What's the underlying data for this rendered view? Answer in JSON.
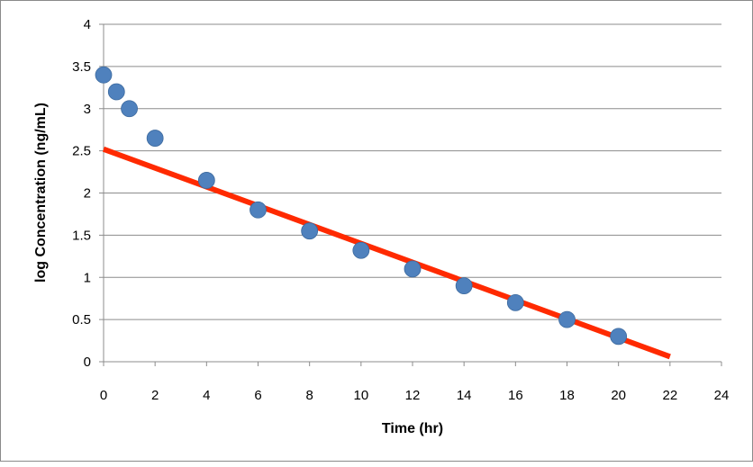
{
  "chart_data": {
    "type": "scatter",
    "title": "",
    "xlabel": "Time (hr)",
    "ylabel": "log Concentration (ng/mL)",
    "xlim": [
      0,
      24
    ],
    "ylim": [
      0,
      4
    ],
    "x_ticks": [
      0,
      2,
      4,
      6,
      8,
      10,
      12,
      14,
      16,
      18,
      20,
      22,
      24
    ],
    "y_ticks": [
      0,
      0.5,
      1,
      1.5,
      2,
      2.5,
      3,
      3.5,
      4
    ],
    "grid": {
      "horizontal": true,
      "vertical": false
    },
    "legend": "none",
    "series": [
      {
        "type": "scatter",
        "color": "#4f81bd",
        "points": [
          {
            "x": 0,
            "y": 3.4
          },
          {
            "x": 0.5,
            "y": 3.2
          },
          {
            "x": 1,
            "y": 3.0
          },
          {
            "x": 2,
            "y": 2.65
          },
          {
            "x": 4,
            "y": 2.15
          },
          {
            "x": 6,
            "y": 1.8
          },
          {
            "x": 8,
            "y": 1.55
          },
          {
            "x": 10,
            "y": 1.32
          },
          {
            "x": 12,
            "y": 1.1
          },
          {
            "x": 14,
            "y": 0.9
          },
          {
            "x": 16,
            "y": 0.7
          },
          {
            "x": 18,
            "y": 0.5
          },
          {
            "x": 20,
            "y": 0.3
          }
        ]
      },
      {
        "type": "line",
        "color": "#ff2a00",
        "points": [
          {
            "x": 0,
            "y": 2.52
          },
          {
            "x": 22,
            "y": 0.06
          }
        ]
      }
    ]
  }
}
